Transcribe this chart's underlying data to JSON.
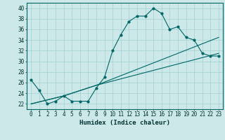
{
  "xlabel": "Humidex (Indice chaleur)",
  "xlim": [
    -0.5,
    23.5
  ],
  "ylim": [
    21,
    41
  ],
  "yticks": [
    22,
    24,
    26,
    28,
    30,
    32,
    34,
    36,
    38,
    40
  ],
  "xticks": [
    0,
    1,
    2,
    3,
    4,
    5,
    6,
    7,
    8,
    9,
    10,
    11,
    12,
    13,
    14,
    15,
    16,
    17,
    18,
    19,
    20,
    21,
    22,
    23
  ],
  "bg_color": "#cce8e8",
  "grid_color": "#aad4d4",
  "line_color": "#006666",
  "line1_x": [
    0,
    1,
    2,
    3,
    4,
    5,
    6,
    7,
    8,
    9,
    10,
    11,
    12,
    13,
    14,
    15,
    16,
    17,
    18,
    19,
    20,
    21,
    22,
    23
  ],
  "line1_y": [
    26.5,
    24.5,
    22.0,
    22.5,
    23.5,
    22.5,
    22.5,
    22.5,
    25.0,
    27.0,
    32.0,
    35.0,
    37.5,
    38.5,
    38.5,
    40.0,
    39.0,
    36.0,
    36.5,
    34.5,
    34.0,
    31.5,
    31.0,
    31.0
  ],
  "line2_x": [
    0,
    4,
    8,
    23
  ],
  "line2_y": [
    22.0,
    23.5,
    25.5,
    31.5
  ],
  "line3_x": [
    0,
    4,
    8,
    23
  ],
  "line3_y": [
    22.0,
    23.5,
    25.5,
    34.5
  ]
}
